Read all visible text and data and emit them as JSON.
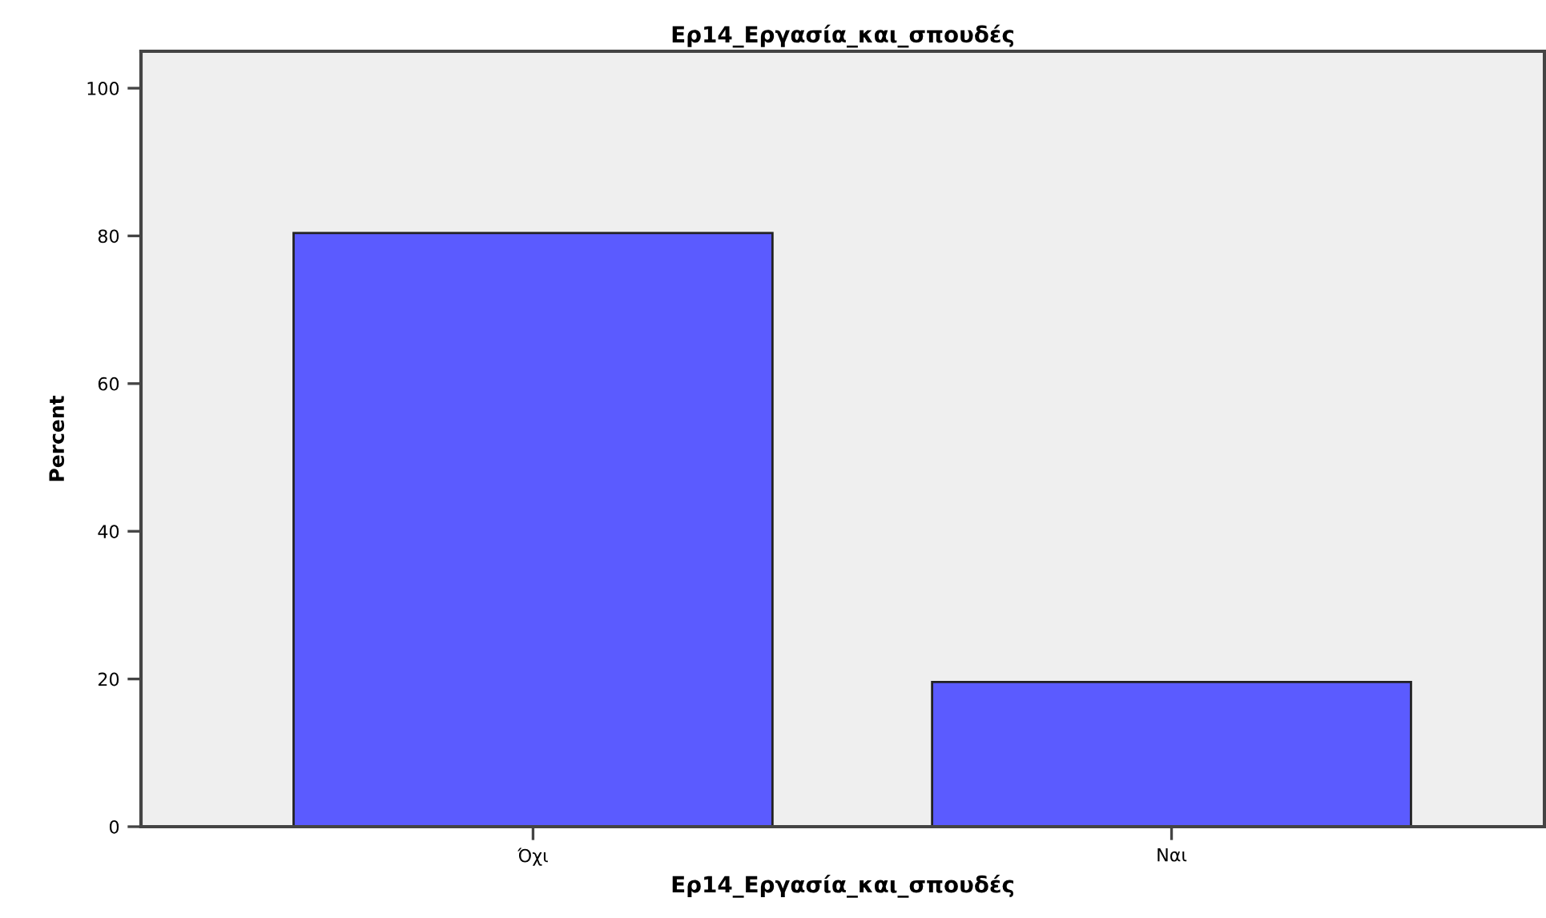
{
  "chart_data": {
    "type": "bar",
    "title": "Ερ14_Εργασία_και_σπουδές",
    "xlabel": "Ερ14_Εργασία_και_σπουδές",
    "ylabel": "Percent",
    "categories": [
      "Όχι",
      "Ναι"
    ],
    "values": [
      80.4,
      19.6
    ],
    "color": "#5b5bff",
    "ylim": [
      0,
      105
    ],
    "yticks": [
      0,
      20,
      40,
      60,
      80,
      100
    ],
    "grid": false,
    "legend": false
  }
}
